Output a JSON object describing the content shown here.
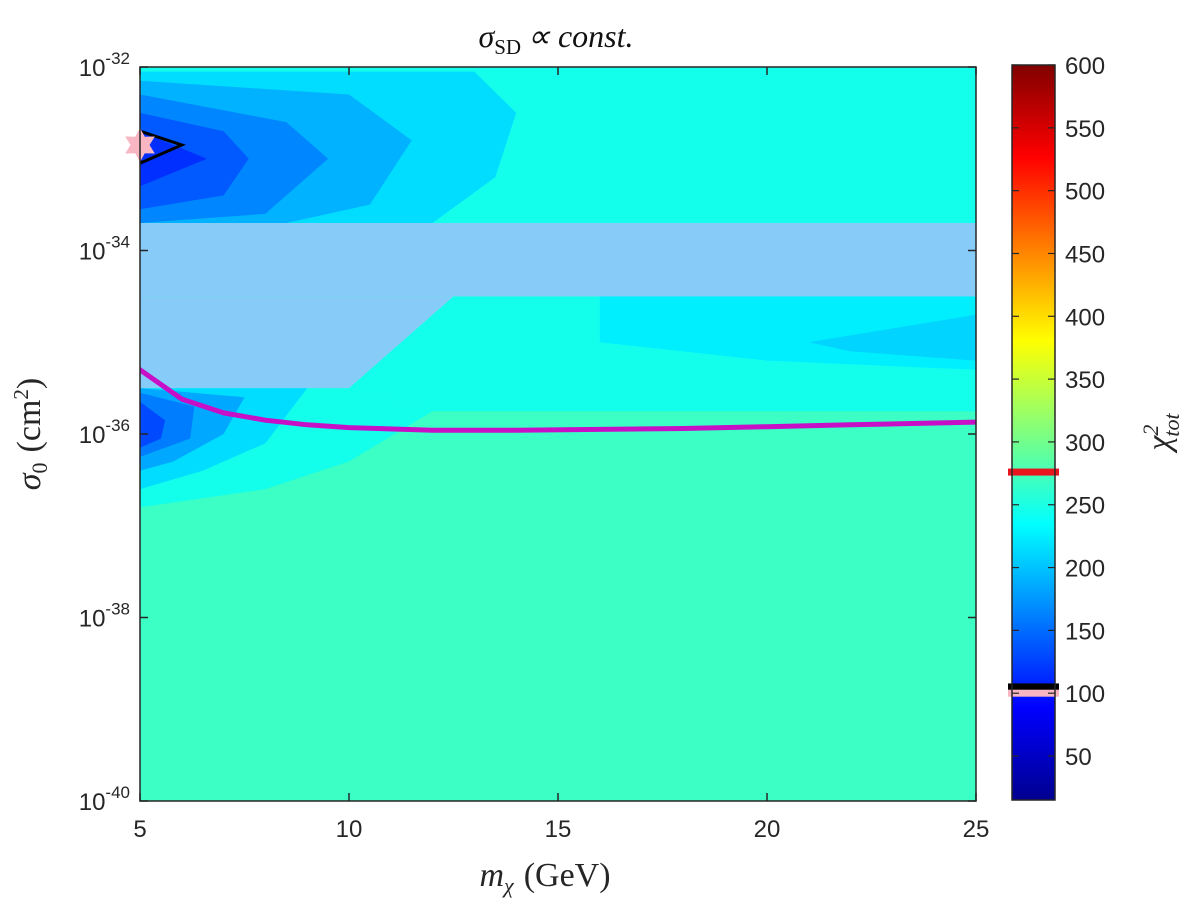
{
  "chart_data": {
    "type": "heatmap",
    "title_parts": {
      "sigma": "σ",
      "subscript": "SD",
      "rest": "∝ const."
    },
    "x_axis": {
      "label_var": "m",
      "label_sub": "χ",
      "label_unit": "(GeV)",
      "range": [
        5,
        25
      ],
      "ticks": [
        5,
        10,
        15,
        20,
        25
      ],
      "tick_labels": [
        "5",
        "10",
        "15",
        "20",
        "25"
      ]
    },
    "y_axis": {
      "scale": "log",
      "label_var": "σ",
      "label_sub": "0",
      "label_unit": "(cm",
      "label_unit_sup": "2",
      "label_unit_close": ")",
      "range_exponent": [
        -40,
        -32
      ],
      "ticks_exponent": [
        -40,
        -38,
        -36,
        -34,
        -32
      ],
      "tick_base": "10",
      "tick_exponents": [
        "-40",
        "-38",
        "-36",
        "-34",
        "-32"
      ]
    },
    "colorbar": {
      "label_var": "χ",
      "label_sup": "2",
      "label_sub": "tot",
      "range": [
        15,
        600
      ],
      "ticks": [
        50,
        100,
        150,
        200,
        250,
        300,
        350,
        400,
        450,
        500,
        550,
        600
      ],
      "tick_labels": [
        "50",
        "100",
        "150",
        "200",
        "250",
        "300",
        "350",
        "400",
        "450",
        "500",
        "550",
        "600"
      ],
      "colormap": "jet",
      "markers": [
        {
          "value": 276,
          "color": "#e8141e"
        },
        {
          "value": 105,
          "color": "#000000"
        },
        {
          "value": 100,
          "color": "#f7b6c2"
        }
      ]
    },
    "background_value": 268,
    "excluded_bands": [
      {
        "color": "#87cbf8",
        "points": [
          [
            5,
            -33.7
          ],
          [
            25,
            -33.7
          ],
          [
            25,
            -34.5
          ],
          [
            5,
            -34.5
          ]
        ]
      },
      {
        "color": "#87cbf8",
        "points": [
          [
            5,
            -34.5
          ],
          [
            12.5,
            -34.5
          ],
          [
            10,
            -35.5
          ],
          [
            5,
            -35.5
          ]
        ]
      }
    ],
    "contour_regions": [
      {
        "value": 245,
        "points": [
          [
            5,
            -32
          ],
          [
            25,
            -32
          ],
          [
            25,
            -33.7
          ],
          [
            5,
            -33.7
          ]
        ]
      },
      {
        "value": 215,
        "points": [
          [
            5,
            -32.05
          ],
          [
            13,
            -32.05
          ],
          [
            14,
            -32.5
          ],
          [
            13.5,
            -33.2
          ],
          [
            12,
            -33.7
          ],
          [
            5,
            -33.7
          ]
        ]
      },
      {
        "value": 190,
        "points": [
          [
            5,
            -32.15
          ],
          [
            10,
            -32.3
          ],
          [
            11.5,
            -32.8
          ],
          [
            10.5,
            -33.5
          ],
          [
            8.5,
            -33.7
          ],
          [
            5,
            -33.7
          ]
        ]
      },
      {
        "value": 165,
        "points": [
          [
            5,
            -32.3
          ],
          [
            8.5,
            -32.6
          ],
          [
            9.5,
            -33.0
          ],
          [
            8,
            -33.6
          ],
          [
            5,
            -33.7
          ]
        ]
      },
      {
        "value": 140,
        "points": [
          [
            5,
            -32.5
          ],
          [
            7,
            -32.7
          ],
          [
            7.6,
            -33.0
          ],
          [
            7,
            -33.4
          ],
          [
            5,
            -33.55
          ]
        ]
      },
      {
        "value": 115,
        "points": [
          [
            5,
            -32.7
          ],
          [
            6.6,
            -33.0
          ],
          [
            5,
            -33.3
          ]
        ]
      },
      {
        "value": 245,
        "points": [
          [
            5,
            -34.5
          ],
          [
            25,
            -34.5
          ],
          [
            25,
            -35.75
          ],
          [
            12,
            -35.75
          ],
          [
            10,
            -35.5
          ],
          [
            12.5,
            -34.5
          ]
        ]
      },
      {
        "value": 225,
        "points": [
          [
            16,
            -34.5
          ],
          [
            25,
            -34.5
          ],
          [
            25,
            -35.3
          ],
          [
            20,
            -35.2
          ],
          [
            16,
            -35.0
          ]
        ]
      },
      {
        "value": 210,
        "points": [
          [
            21,
            -35.0
          ],
          [
            25,
            -34.7
          ],
          [
            25,
            -35.2
          ],
          [
            22,
            -35.1
          ]
        ]
      },
      {
        "value": 245,
        "points": [
          [
            5,
            -35.5
          ],
          [
            10,
            -35.5
          ],
          [
            12,
            -35.75
          ],
          [
            10,
            -36.3
          ],
          [
            8,
            -36.6
          ],
          [
            5,
            -36.8
          ]
        ]
      },
      {
        "value": 215,
        "points": [
          [
            5,
            -35.5
          ],
          [
            9,
            -35.5
          ],
          [
            8,
            -36.1
          ],
          [
            6.5,
            -36.4
          ],
          [
            5,
            -36.6
          ]
        ]
      },
      {
        "value": 185,
        "points": [
          [
            5,
            -35.5
          ],
          [
            7.5,
            -35.6
          ],
          [
            7,
            -36.0
          ],
          [
            5.8,
            -36.3
          ],
          [
            5,
            -36.4
          ]
        ]
      },
      {
        "value": 160,
        "points": [
          [
            5,
            -35.55
          ],
          [
            6.3,
            -35.7
          ],
          [
            6.2,
            -36.05
          ],
          [
            5,
            -36.25
          ]
        ]
      },
      {
        "value": 130,
        "points": [
          [
            5,
            -35.65
          ],
          [
            5.6,
            -35.85
          ],
          [
            5.5,
            -36.05
          ],
          [
            5,
            -36.15
          ]
        ]
      }
    ],
    "exclusion_curve": {
      "color": "#c70fc8",
      "x": [
        5,
        6,
        7,
        8,
        9,
        10,
        12,
        14,
        16,
        18,
        20,
        22,
        25
      ],
      "y_exponent": [
        -35.3,
        -35.62,
        -35.77,
        -35.85,
        -35.9,
        -35.93,
        -35.96,
        -35.96,
        -35.95,
        -35.94,
        -35.92,
        -35.9,
        -35.87
      ]
    },
    "best_fit_contour": {
      "color": "#000000",
      "points": [
        [
          5,
          -32.7
        ],
        [
          6,
          -32.85
        ],
        [
          5,
          -33.05
        ]
      ]
    },
    "best_fit_point": {
      "x": 5,
      "y_exponent": -32.85,
      "color": "#f7b6c2"
    }
  }
}
